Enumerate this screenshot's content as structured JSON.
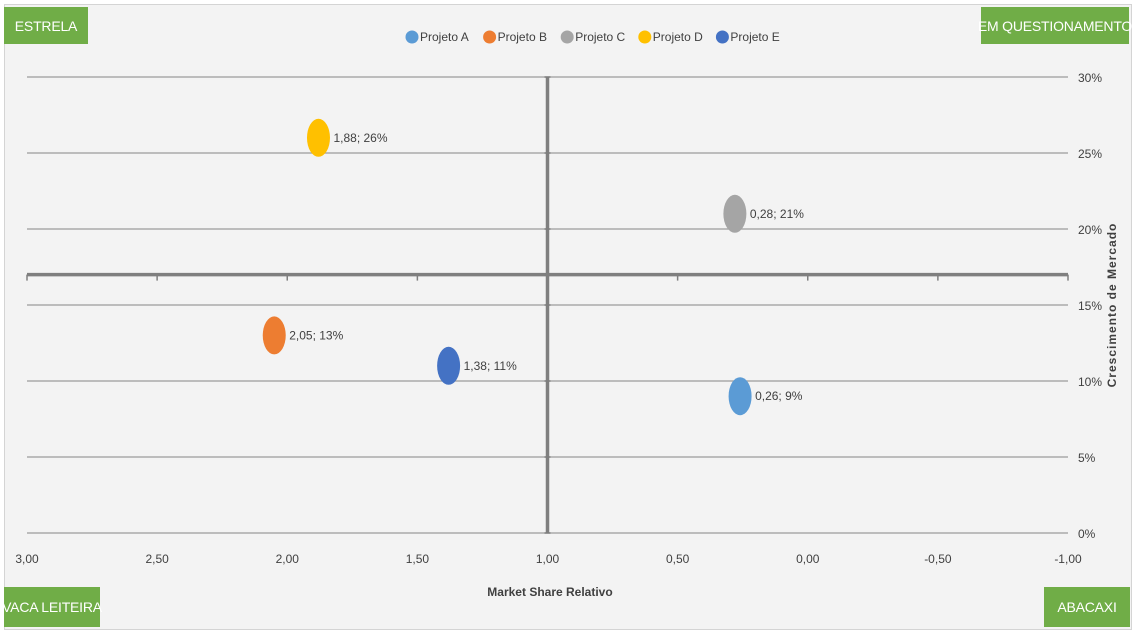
{
  "quadrants": {
    "top_left": "ESTRELA",
    "top_right": "EM QUESTIONAMENTO",
    "bottom_left": "VACA LEITEIRA",
    "bottom_right": "ABACAXI"
  },
  "colors": {
    "quadrant_bg": "#70ad47",
    "Projeto A": "#5b9bd5",
    "Projeto B": "#ed7d31",
    "Projeto C": "#a5a5a5",
    "Projeto D": "#ffc000",
    "Projeto E": "#4472c4"
  },
  "chart_data": {
    "type": "scatter",
    "xlabel": "Market Share Relativo",
    "ylabel": "Crescimento de Mercado",
    "xlim": [
      3.0,
      -1.0
    ],
    "ylim": [
      0,
      0.3
    ],
    "x_reversed": true,
    "x_ticks": [
      "3,00",
      "2,50",
      "2,00",
      "1,50",
      "1,00",
      "0,50",
      "0,00",
      "-0,50",
      "-1,00"
    ],
    "x_tick_values": [
      3.0,
      2.5,
      2.0,
      1.5,
      1.0,
      0.5,
      0.0,
      -0.5,
      -1.0
    ],
    "y_ticks": [
      "0%",
      "5%",
      "10%",
      "15%",
      "20%",
      "25%",
      "30%"
    ],
    "y_tick_values": [
      0,
      0.05,
      0.1,
      0.15,
      0.2,
      0.25,
      0.3
    ],
    "y_axis_position": "right",
    "x_axis_crosses_at": 0.17,
    "y_axis_crosses_at": 1.0,
    "grid": true,
    "legend_position": "top",
    "series": [
      {
        "name": "Projeto A",
        "x": 0.26,
        "y": 0.09,
        "label": "0,26; 9%"
      },
      {
        "name": "Projeto B",
        "x": 2.05,
        "y": 0.13,
        "label": "2,05; 13%"
      },
      {
        "name": "Projeto C",
        "x": 0.28,
        "y": 0.21,
        "label": "0,28; 21%"
      },
      {
        "name": "Projeto D",
        "x": 1.88,
        "y": 0.26,
        "label": "1,88; 26%"
      },
      {
        "name": "Projeto E",
        "x": 1.38,
        "y": 0.11,
        "label": "1,38; 11%"
      }
    ]
  }
}
